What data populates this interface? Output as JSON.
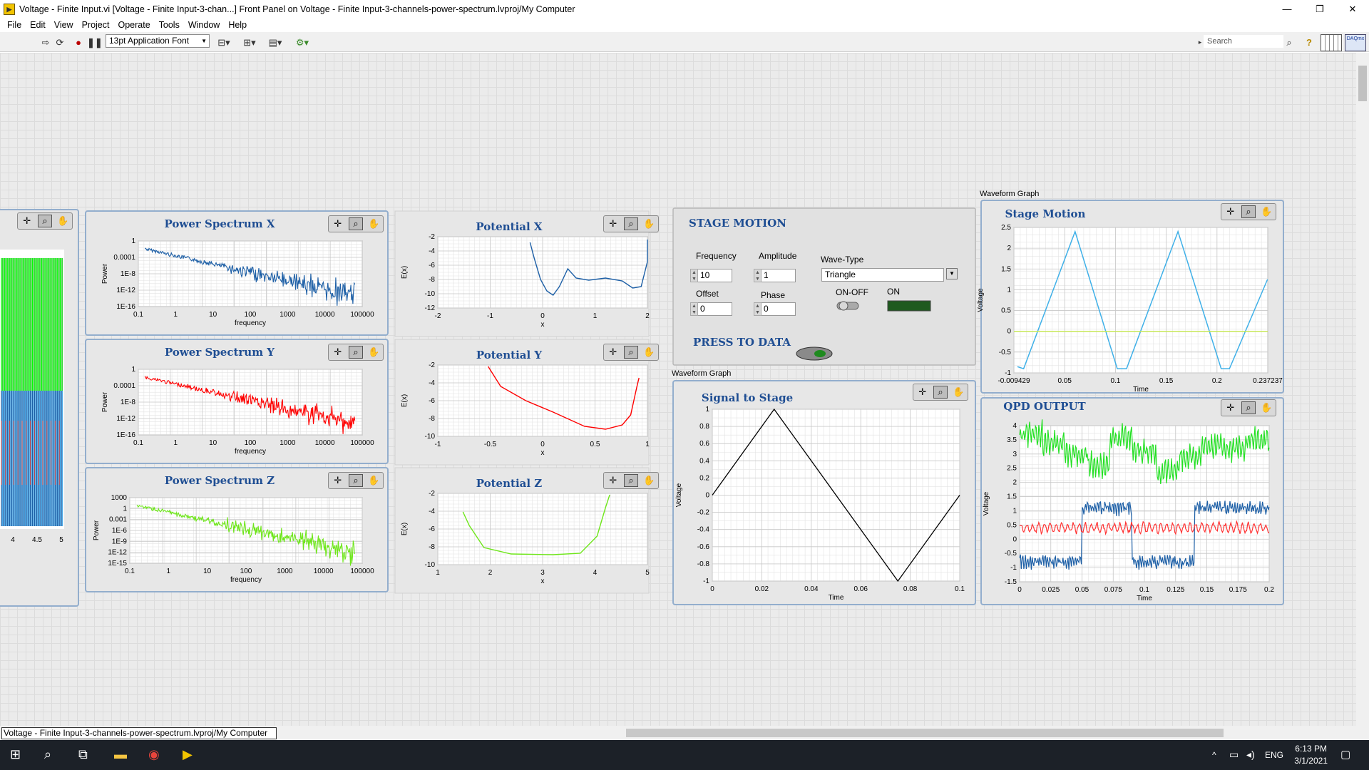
{
  "window": {
    "title": "Voltage - Finite Input.vi [Voltage - Finite Input-3-chan...] Front Panel on Voltage - Finite Input-3-channels-power-spectrum.lvproj/My Computer",
    "minimize": "—",
    "maximize": "❐",
    "close": "✕"
  },
  "menu": [
    "File",
    "Edit",
    "View",
    "Project",
    "Operate",
    "Tools",
    "Window",
    "Help"
  ],
  "toolbar": {
    "font": "13pt Application Font",
    "search_placeholder": "Search",
    "help": "?"
  },
  "status_path": "Voltage - Finite Input-3-channels-power-spectrum.lvproj/My Computer",
  "taskbar": {
    "lang": "ENG",
    "time": "6:13 PM",
    "date": "3/1/2021"
  },
  "left_partial_graph": {
    "x_ticks": [
      "4",
      "4.5",
      "5"
    ]
  },
  "power_spectra": [
    {
      "title": "Power Spectrum X",
      "ylabel": "Power",
      "xlabel": "frequency",
      "y_ticks": [
        "1",
        "0.0001",
        "1E-8",
        "1E-12",
        "1E-16"
      ],
      "x_ticks": [
        "0.1",
        "1",
        "10",
        "100",
        "1000",
        "10000",
        "100000"
      ],
      "color": "#1d5fa6"
    },
    {
      "title": "Power Spectrum Y",
      "ylabel": "Power",
      "xlabel": "frequency",
      "y_ticks": [
        "1",
        "0.0001",
        "1E-8",
        "1E-12",
        "1E-16"
      ],
      "x_ticks": [
        "0.1",
        "1",
        "10",
        "100",
        "1000",
        "10000",
        "100000"
      ],
      "color": "#ff0000"
    },
    {
      "title": "Power Spectrum Z",
      "ylabel": "Power",
      "xlabel": "frequency",
      "y_ticks": [
        "1000",
        "1",
        "0.001",
        "1E-6",
        "1E-9",
        "1E-12",
        "1E-15"
      ],
      "x_ticks": [
        "0.1",
        "1",
        "10",
        "100",
        "1000",
        "10000",
        "100000"
      ],
      "color": "#6ee61a"
    }
  ],
  "potentials": [
    {
      "title": "Potential X",
      "ylabel": "E(x)",
      "xlabel": "x",
      "y_ticks": [
        "-2",
        "-4",
        "-6",
        "-8",
        "-10",
        "-12"
      ],
      "x_ticks": [
        "-2",
        "-1",
        "0",
        "1",
        "2"
      ],
      "color": "#1d5fa6"
    },
    {
      "title": "Potential Y",
      "ylabel": "E(x)",
      "xlabel": "x",
      "y_ticks": [
        "-2",
        "-4",
        "-6",
        "-8",
        "-10"
      ],
      "x_ticks": [
        "-1",
        "-0.5",
        "0",
        "0.5",
        "1"
      ],
      "color": "#ff0000"
    },
    {
      "title": "Potential Z",
      "ylabel": "E(x)",
      "xlabel": "x",
      "y_ticks": [
        "-2",
        "-4",
        "-6",
        "-8",
        "-10"
      ],
      "x_ticks": [
        "1",
        "2",
        "3",
        "4",
        "5"
      ],
      "color": "#6ee61a"
    }
  ],
  "stage_motion_ctrl": {
    "title": "STAGE MOTION",
    "frequency_label": "Frequency",
    "frequency": "10",
    "amplitude_label": "Amplitude",
    "amplitude": "1",
    "offset_label": "Offset",
    "offset": "0",
    "phase_label": "Phase",
    "phase": "0",
    "wavetype_label": "Wave-Type",
    "wavetype": "Triangle",
    "onoff_label": "ON-OFF",
    "on_label": "ON",
    "press_label": "PRESS TO DATA"
  },
  "signal_graph": {
    "above_label": "Waveform Graph",
    "title": "Signal to Stage",
    "ylabel": "Voltage",
    "xlabel": "Time",
    "y_ticks": [
      "1",
      "0.8",
      "0.6",
      "0.4",
      "0.2",
      "0",
      "-0.2",
      "-0.4",
      "-0.6",
      "-0.8",
      "-1"
    ],
    "x_ticks": [
      "0",
      "0.02",
      "0.04",
      "0.06",
      "0.08",
      "0.1"
    ]
  },
  "stage_graph": {
    "above_label": "Waveform Graph",
    "title": "Stage Motion",
    "ylabel": "Voltage",
    "xlabel": "Time",
    "y_ticks": [
      "2.5",
      "2",
      "1.5",
      "1",
      "0.5",
      "0",
      "-0.5",
      "-1"
    ],
    "x_ticks": [
      "-0.009429",
      "0.05",
      "0.1",
      "0.15",
      "0.2",
      "0.237237"
    ]
  },
  "qpd_graph": {
    "title": "QPD OUTPUT",
    "ylabel": "Voltage",
    "xlabel": "Time",
    "y_ticks": [
      "4",
      "3.5",
      "3",
      "2.5",
      "2",
      "1.5",
      "1",
      "0.5",
      "0",
      "-0.5",
      "-1",
      "-1.5"
    ],
    "x_ticks": [
      "0",
      "0.025",
      "0.05",
      "0.075",
      "0.1",
      "0.125",
      "0.15",
      "0.175",
      "0.2"
    ]
  },
  "palette_icons": [
    "crosshair-icon",
    "zoom-icon",
    "hand-icon"
  ],
  "chart_data": [
    {
      "type": "line",
      "title": "Signal to Stage",
      "xlabel": "Time",
      "ylabel": "Voltage",
      "xlim": [
        0,
        0.1
      ],
      "ylim": [
        -1,
        1
      ],
      "series": [
        {
          "x": [
            0,
            0.025,
            0.075,
            0.1
          ],
          "y": [
            0,
            1,
            -1,
            0
          ]
        }
      ]
    },
    {
      "type": "line",
      "title": "Stage Motion",
      "xlabel": "Time",
      "ylabel": "Voltage",
      "xlim": [
        -0.009429,
        0.237237
      ],
      "ylim": [
        -1,
        2.5
      ],
      "series": [
        {
          "x": [
            -0.006,
            0.0,
            0.05,
            0.091,
            0.1,
            0.15,
            0.192,
            0.2,
            0.237
          ],
          "y": [
            -0.85,
            -0.9,
            2.4,
            -0.9,
            -0.9,
            2.4,
            -0.9,
            -0.9,
            1.25
          ]
        },
        {
          "x": [
            -0.009429,
            0.237237
          ],
          "y": [
            0,
            0
          ]
        }
      ]
    }
  ]
}
